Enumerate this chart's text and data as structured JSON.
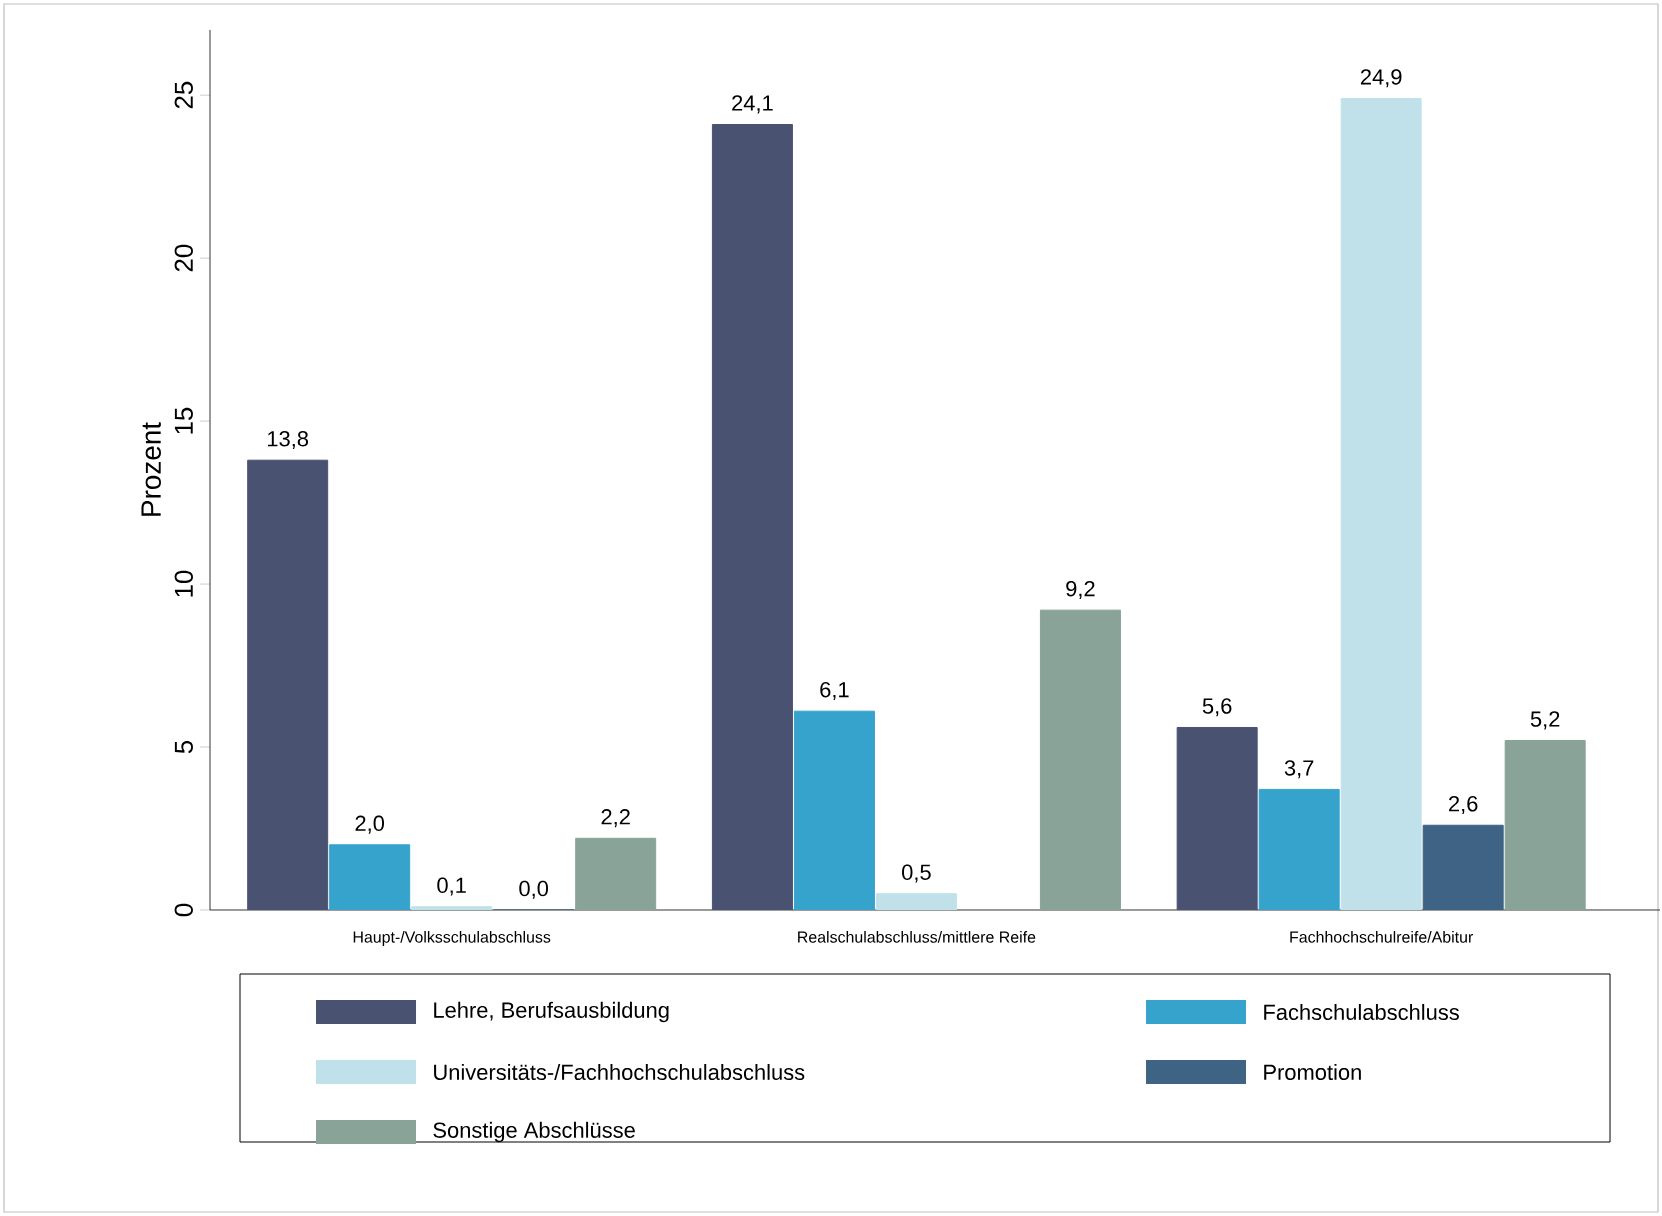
{
  "chart_data": {
    "type": "bar",
    "ylabel": "Prozent",
    "categories": [
      "Haupt-/Volksschulabschluss",
      "Realschulabschluss/mittlere Reife",
      "Fachhochschulreife/Abitur"
    ],
    "series": [
      {
        "name": "Lehre, Berufsausbildung",
        "color": "#4a5272",
        "values": [
          13.8,
          24.1,
          5.6
        ],
        "value_labels": [
          "13,8",
          "24,1",
          "5,6"
        ]
      },
      {
        "name": "Fachschulabschluss",
        "color": "#36a3cc",
        "values": [
          2.0,
          6.1,
          3.7
        ],
        "value_labels": [
          "2,0",
          "6,1",
          "3,7"
        ]
      },
      {
        "name": "Universitäts-/Fachhochschulabschluss",
        "color": "#c0e1ea",
        "values": [
          0.1,
          0.5,
          24.9
        ],
        "value_labels": [
          "0,1",
          "0,5",
          "24,9"
        ]
      },
      {
        "name": "Promotion",
        "color": "#3e6384",
        "values": [
          0.0,
          null,
          2.6
        ],
        "value_labels": [
          "0,0",
          null,
          "2,6"
        ]
      },
      {
        "name": "Sonstige Abschlüsse",
        "color": "#8aa398",
        "values": [
          2.2,
          9.2,
          5.2
        ],
        "value_labels": [
          "2,2",
          "9,2",
          "5,2"
        ]
      }
    ],
    "ylim": [
      0,
      27
    ],
    "yticks": [
      0,
      5,
      10,
      15,
      20,
      25
    ],
    "grid": false,
    "legend": "bottom"
  }
}
